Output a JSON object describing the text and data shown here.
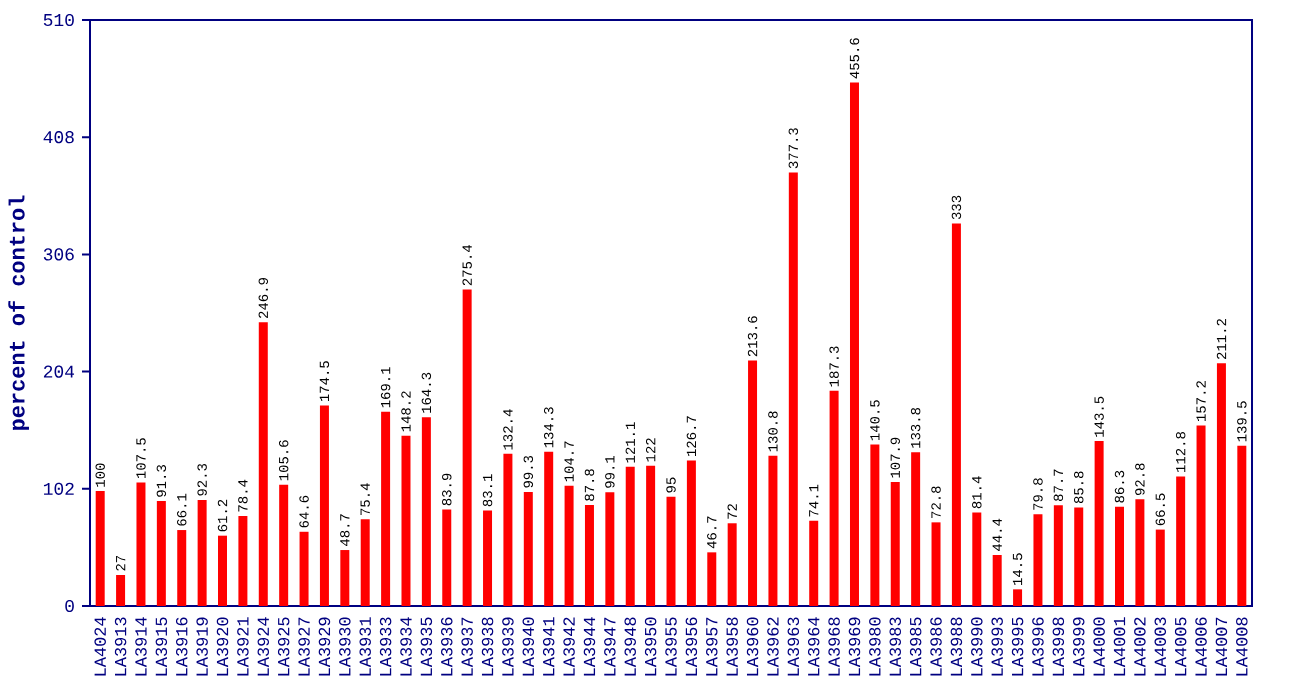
{
  "chart_data": {
    "type": "bar",
    "ylabel": "percent of control",
    "color": "#ff0000",
    "data_labels": true,
    "categories": [
      "LA4024",
      "LA3913",
      "LA3914",
      "LA3915",
      "LA3916",
      "LA3919",
      "LA3920",
      "LA3921",
      "LA3924",
      "LA3925",
      "LA3927",
      "LA3929",
      "LA3930",
      "LA3931",
      "LA3933",
      "LA3934",
      "LA3935",
      "LA3936",
      "LA3937",
      "LA3938",
      "LA3939",
      "LA3940",
      "LA3941",
      "LA3942",
      "LA3944",
      "LA3947",
      "LA3948",
      "LA3950",
      "LA3955",
      "LA3956",
      "LA3957",
      "LA3958",
      "LA3960",
      "LA3962",
      "LA3963",
      "LA3964",
      "LA3968",
      "LA3969",
      "LA3980",
      "LA3983",
      "LA3985",
      "LA3986",
      "LA3988",
      "LA3990",
      "LA3993",
      "LA3995",
      "LA3996",
      "LA3998",
      "LA3999",
      "LA4000",
      "LA4001",
      "LA4002",
      "LA4003",
      "LA4005",
      "LA4006",
      "LA4007",
      "LA4008"
    ],
    "values": [
      100,
      27,
      107.5,
      91.3,
      66.1,
      92.3,
      61.2,
      78.4,
      246.9,
      105.6,
      64.6,
      174.5,
      48.7,
      75.4,
      169.1,
      148.2,
      164.3,
      83.9,
      275.4,
      83.1,
      132.4,
      99.3,
      134.3,
      104.7,
      87.8,
      99.1,
      121.1,
      122,
      95,
      126.7,
      46.7,
      72,
      213.6,
      130.8,
      377.3,
      74.1,
      187.3,
      455.6,
      140.5,
      107.9,
      133.8,
      72.8,
      333,
      81.4,
      44.4,
      14.5,
      79.8,
      87.7,
      85.8,
      143.5,
      86.3,
      92.8,
      66.5,
      112.8,
      157.2,
      211.2,
      139.5
    ],
    "ylim": [
      0,
      510
    ],
    "yticks": [
      0,
      102,
      204,
      306,
      408,
      510
    ]
  }
}
